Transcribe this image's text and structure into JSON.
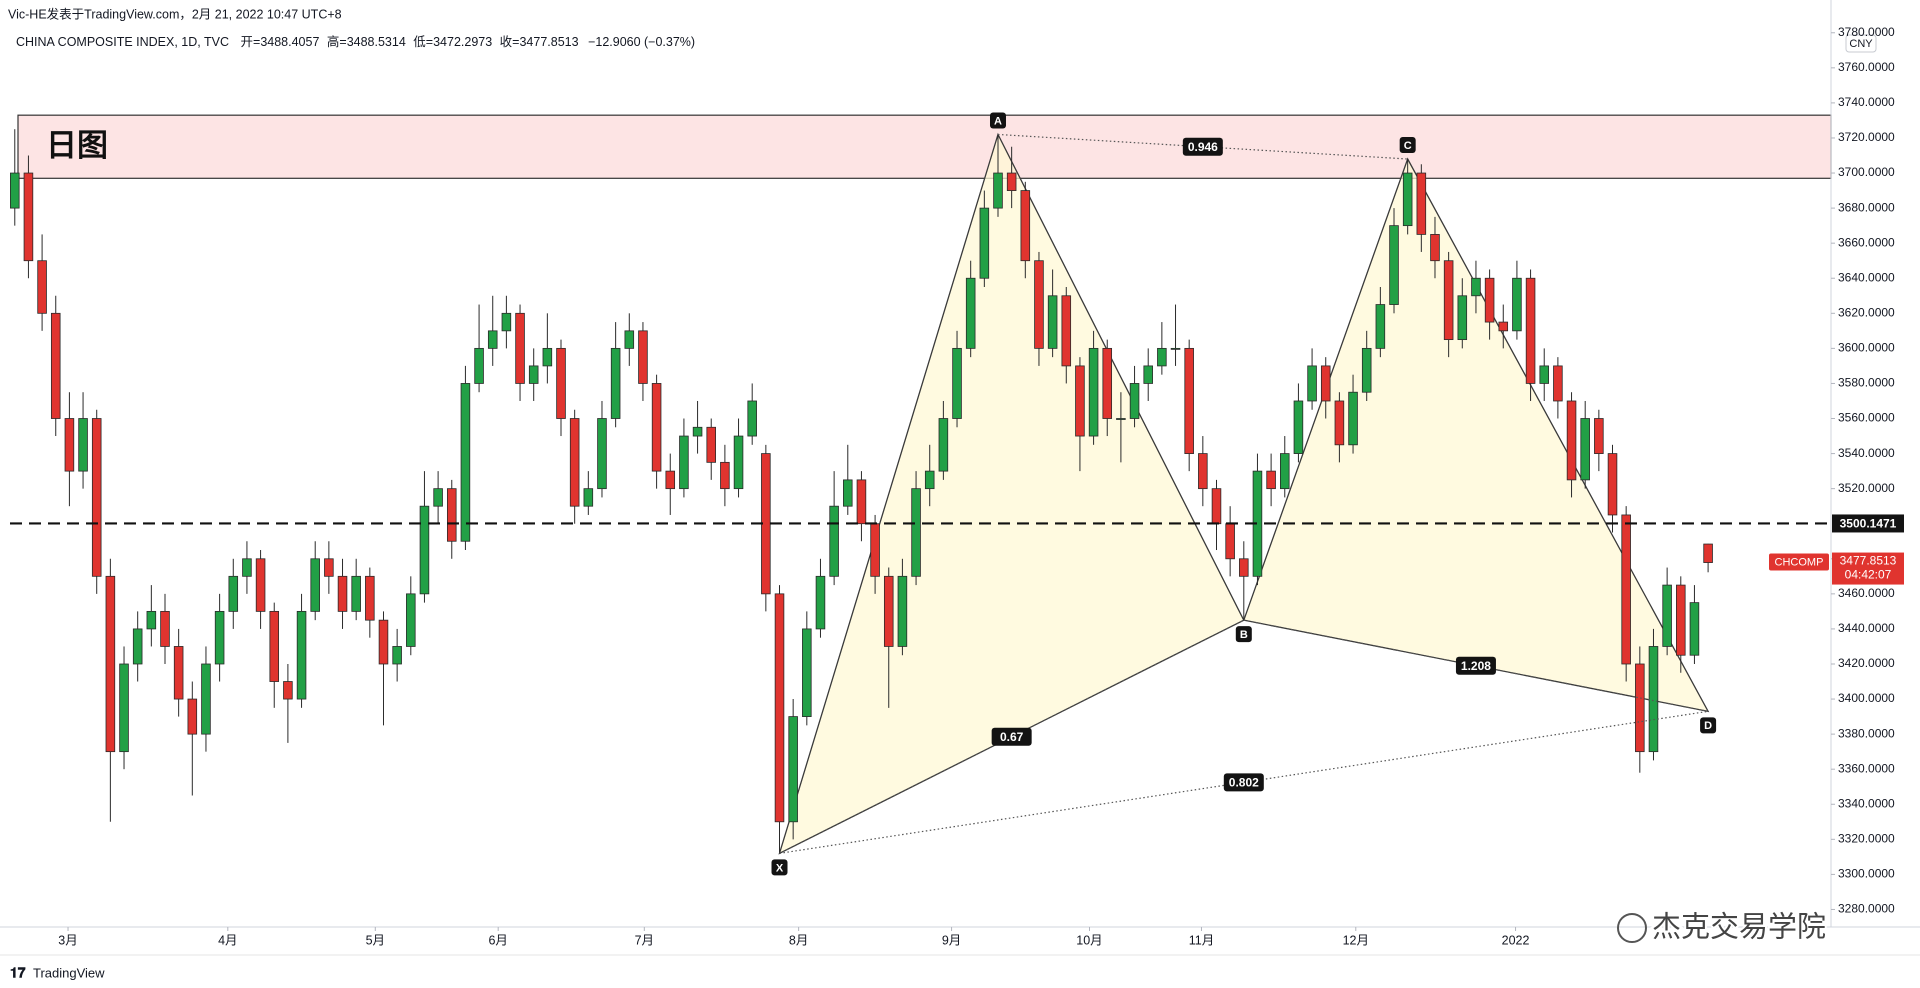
{
  "chart_data": {
    "type": "candlestick",
    "publisher": "Vic-HE发表于TradingView.com，2月 21, 2022 10:47 UTC+8",
    "symbol": "CHINA COMPOSITE INDEX, 1D, TVC",
    "open_label": "开=",
    "high_label": "高=",
    "low_label": "低=",
    "close_label": "收=",
    "change": "−12.9060 (−0.37%)",
    "currency": "CNY",
    "countdown": "04:42:07",
    "brand": "TradingView",
    "watermark": "杰克交易学院",
    "grid": false,
    "xlim": [
      -0.35,
      133
    ],
    "xticks": [
      {
        "value": 3.9,
        "label": "3月"
      },
      {
        "value": 15.6,
        "label": "4月"
      },
      {
        "value": 26.4,
        "label": "5月"
      },
      {
        "value": 35.4,
        "label": "6月"
      },
      {
        "value": 46.1,
        "label": "7月"
      },
      {
        "value": 57.4,
        "label": "8月"
      },
      {
        "value": 68.6,
        "label": "9月"
      },
      {
        "value": 78.7,
        "label": "10月"
      },
      {
        "value": 86.9,
        "label": "11月"
      },
      {
        "value": 98.2,
        "label": "12月"
      },
      {
        "value": 109.9,
        "label": "2022"
      }
    ],
    "ylim": [
      3270,
      3785
    ],
    "yticks": [
      {
        "value": 3280,
        "label": "3280.0000"
      },
      {
        "value": 3300,
        "label": "3300.0000"
      },
      {
        "value": 3320,
        "label": "3320.0000"
      },
      {
        "value": 3340,
        "label": "3340.0000"
      },
      {
        "value": 3360,
        "label": "3360.0000"
      },
      {
        "value": 3380,
        "label": "3380.0000"
      },
      {
        "value": 3400,
        "label": "3400.0000"
      },
      {
        "value": 3420,
        "label": "3420.0000"
      },
      {
        "value": 3440,
        "label": "3440.0000"
      },
      {
        "value": 3460,
        "label": "3460.0000"
      },
      {
        "value": 3480,
        "label": "3480.0000"
      },
      {
        "value": 3520,
        "label": "3520.0000"
      },
      {
        "value": 3540,
        "label": "3540.0000"
      },
      {
        "value": 3560,
        "label": "3560.0000"
      },
      {
        "value": 3580,
        "label": "3580.0000"
      },
      {
        "value": 3600,
        "label": "3600.0000"
      },
      {
        "value": 3620,
        "label": "3620.0000"
      },
      {
        "value": 3640,
        "label": "3640.0000"
      },
      {
        "value": 3660,
        "label": "3660.0000"
      },
      {
        "value": 3680,
        "label": "3680.0000"
      },
      {
        "value": 3700,
        "label": "3700.0000"
      },
      {
        "value": 3720,
        "label": "3720.0000"
      },
      {
        "value": 3740,
        "label": "3740.0000"
      },
      {
        "value": 3760,
        "label": "3760.0000"
      },
      {
        "value": 3780,
        "label": "3780.0000"
      }
    ],
    "series": [
      {
        "name": "CHCOMP",
        "up_color": "#22a046",
        "down_color": "#e0342f",
        "ohlc": [
          [
            3680,
            3725,
            3670,
            3700
          ],
          [
            3700,
            3710,
            3640,
            3650
          ],
          [
            3650,
            3665,
            3610,
            3620
          ],
          [
            3620,
            3630,
            3550,
            3560
          ],
          [
            3560,
            3575,
            3510,
            3530
          ],
          [
            3530,
            3575,
            3520,
            3560
          ],
          [
            3560,
            3565,
            3460,
            3470
          ],
          [
            3470,
            3480,
            3330,
            3370
          ],
          [
            3370,
            3430,
            3360,
            3420
          ],
          [
            3420,
            3450,
            3410,
            3440
          ],
          [
            3440,
            3465,
            3430,
            3450
          ],
          [
            3450,
            3460,
            3420,
            3430
          ],
          [
            3430,
            3440,
            3390,
            3400
          ],
          [
            3400,
            3410,
            3345,
            3380
          ],
          [
            3380,
            3430,
            3370,
            3420
          ],
          [
            3420,
            3460,
            3410,
            3450
          ],
          [
            3450,
            3480,
            3440,
            3470
          ],
          [
            3470,
            3490,
            3460,
            3480
          ],
          [
            3480,
            3485,
            3440,
            3450
          ],
          [
            3450,
            3455,
            3395,
            3410
          ],
          [
            3410,
            3420,
            3375,
            3400
          ],
          [
            3400,
            3460,
            3395,
            3450
          ],
          [
            3450,
            3490,
            3445,
            3480
          ],
          [
            3480,
            3490,
            3460,
            3470
          ],
          [
            3470,
            3480,
            3440,
            3450
          ],
          [
            3450,
            3480,
            3445,
            3470
          ],
          [
            3470,
            3475,
            3435,
            3445
          ],
          [
            3445,
            3450,
            3385,
            3420
          ],
          [
            3420,
            3440,
            3410,
            3430
          ],
          [
            3430,
            3470,
            3425,
            3460
          ],
          [
            3460,
            3530,
            3455,
            3510
          ],
          [
            3510,
            3530,
            3500,
            3520
          ],
          [
            3520,
            3525,
            3480,
            3490
          ],
          [
            3490,
            3590,
            3485,
            3580
          ],
          [
            3580,
            3625,
            3575,
            3600
          ],
          [
            3600,
            3630,
            3590,
            3610
          ],
          [
            3610,
            3630,
            3600,
            3620
          ],
          [
            3620,
            3625,
            3570,
            3580
          ],
          [
            3580,
            3600,
            3570,
            3590
          ],
          [
            3590,
            3620,
            3580,
            3600
          ],
          [
            3600,
            3605,
            3550,
            3560
          ],
          [
            3560,
            3565,
            3500,
            3510
          ],
          [
            3510,
            3530,
            3505,
            3520
          ],
          [
            3520,
            3570,
            3515,
            3560
          ],
          [
            3560,
            3615,
            3555,
            3600
          ],
          [
            3600,
            3620,
            3590,
            3610
          ],
          [
            3610,
            3615,
            3570,
            3580
          ],
          [
            3580,
            3585,
            3520,
            3530
          ],
          [
            3530,
            3540,
            3505,
            3520
          ],
          [
            3520,
            3560,
            3515,
            3550
          ],
          [
            3550,
            3570,
            3540,
            3555
          ],
          [
            3555,
            3560,
            3525,
            3535
          ],
          [
            3535,
            3545,
            3510,
            3520
          ],
          [
            3520,
            3560,
            3515,
            3550
          ],
          [
            3550,
            3580,
            3545,
            3570
          ],
          [
            3540,
            3545,
            3450,
            3460
          ],
          [
            3460,
            3465,
            3312,
            3330
          ],
          [
            3330,
            3400,
            3320,
            3390
          ],
          [
            3390,
            3450,
            3385,
            3440
          ],
          [
            3440,
            3480,
            3435,
            3470
          ],
          [
            3470,
            3530,
            3465,
            3510
          ],
          [
            3510,
            3545,
            3505,
            3525
          ],
          [
            3525,
            3530,
            3490,
            3500
          ],
          [
            3500,
            3505,
            3460,
            3470
          ],
          [
            3470,
            3475,
            3395,
            3430
          ],
          [
            3430,
            3480,
            3425,
            3470
          ],
          [
            3470,
            3530,
            3465,
            3520
          ],
          [
            3520,
            3545,
            3510,
            3530
          ],
          [
            3530,
            3570,
            3525,
            3560
          ],
          [
            3560,
            3610,
            3555,
            3600
          ],
          [
            3600,
            3650,
            3595,
            3640
          ],
          [
            3640,
            3690,
            3635,
            3680
          ],
          [
            3680,
            3722,
            3675,
            3700
          ],
          [
            3700,
            3715,
            3680,
            3690
          ],
          [
            3690,
            3695,
            3640,
            3650
          ],
          [
            3650,
            3655,
            3590,
            3600
          ],
          [
            3600,
            3645,
            3595,
            3630
          ],
          [
            3630,
            3635,
            3580,
            3590
          ],
          [
            3590,
            3595,
            3530,
            3550
          ],
          [
            3550,
            3610,
            3545,
            3600
          ],
          [
            3600,
            3605,
            3550,
            3560
          ],
          [
            3560,
            3575,
            3535,
            3560
          ],
          [
            3560,
            3590,
            3555,
            3580
          ],
          [
            3580,
            3600,
            3570,
            3590
          ],
          [
            3590,
            3615,
            3585,
            3600
          ],
          [
            3600,
            3625,
            3590,
            3600
          ],
          [
            3600,
            3605,
            3530,
            3540
          ],
          [
            3540,
            3550,
            3510,
            3520
          ],
          [
            3520,
            3525,
            3485,
            3500
          ],
          [
            3500,
            3510,
            3470,
            3480
          ],
          [
            3480,
            3490,
            3445,
            3470
          ],
          [
            3470,
            3540,
            3465,
            3530
          ],
          [
            3530,
            3540,
            3510,
            3520
          ],
          [
            3520,
            3550,
            3515,
            3540
          ],
          [
            3540,
            3580,
            3535,
            3570
          ],
          [
            3570,
            3600,
            3565,
            3590
          ],
          [
            3590,
            3595,
            3560,
            3570
          ],
          [
            3570,
            3575,
            3535,
            3545
          ],
          [
            3545,
            3585,
            3540,
            3575
          ],
          [
            3575,
            3610,
            3570,
            3600
          ],
          [
            3600,
            3635,
            3595,
            3625
          ],
          [
            3625,
            3680,
            3620,
            3670
          ],
          [
            3670,
            3708,
            3665,
            3700
          ],
          [
            3700,
            3705,
            3655,
            3665
          ],
          [
            3665,
            3675,
            3640,
            3650
          ],
          [
            3650,
            3655,
            3595,
            3605
          ],
          [
            3605,
            3640,
            3600,
            3630
          ],
          [
            3630,
            3650,
            3620,
            3640
          ],
          [
            3640,
            3645,
            3605,
            3615
          ],
          [
            3615,
            3625,
            3600,
            3610
          ],
          [
            3610,
            3650,
            3605,
            3640
          ],
          [
            3640,
            3645,
            3570,
            3580
          ],
          [
            3580,
            3600,
            3570,
            3590
          ],
          [
            3590,
            3595,
            3560,
            3570
          ],
          [
            3570,
            3575,
            3515,
            3525
          ],
          [
            3525,
            3570,
            3520,
            3560
          ],
          [
            3560,
            3565,
            3530,
            3540
          ],
          [
            3540,
            3545,
            3495,
            3505
          ],
          [
            3505,
            3510,
            3410,
            3420
          ],
          [
            3420,
            3430,
            3358,
            3370
          ],
          [
            3370,
            3440,
            3365,
            3430
          ],
          [
            3430,
            3475,
            3425,
            3465
          ],
          [
            3465,
            3470,
            3415,
            3425
          ],
          [
            3425,
            3465,
            3420,
            3455
          ],
          [
            3488.4057,
            3488.5314,
            3472.2973,
            3477.8513
          ]
        ]
      }
    ],
    "hline": {
      "value": 3500.1471
    },
    "zone": {
      "top": 3733,
      "bottom": 3697,
      "label": "日图",
      "color": "#fde4e4"
    },
    "pattern": {
      "color": "#fff8d6",
      "points": [
        {
          "label": "X",
          "index": 56,
          "price": 3312
        },
        {
          "label": "A",
          "index": 72,
          "price": 3722
        },
        {
          "label": "B",
          "index": 90,
          "price": 3445
        },
        {
          "label": "C",
          "index": 102,
          "price": 3708
        },
        {
          "label": "D",
          "index": 124,
          "price": 3393
        }
      ],
      "ratios": [
        {
          "value": 0.946,
          "between": [
            "A",
            "C"
          ]
        },
        {
          "value": 0.67,
          "between": [
            "X",
            "B"
          ]
        },
        {
          "value": 1.208,
          "between": [
            "B",
            "D"
          ]
        },
        {
          "value": 0.802,
          "between": [
            "X",
            "D"
          ]
        }
      ]
    }
  }
}
